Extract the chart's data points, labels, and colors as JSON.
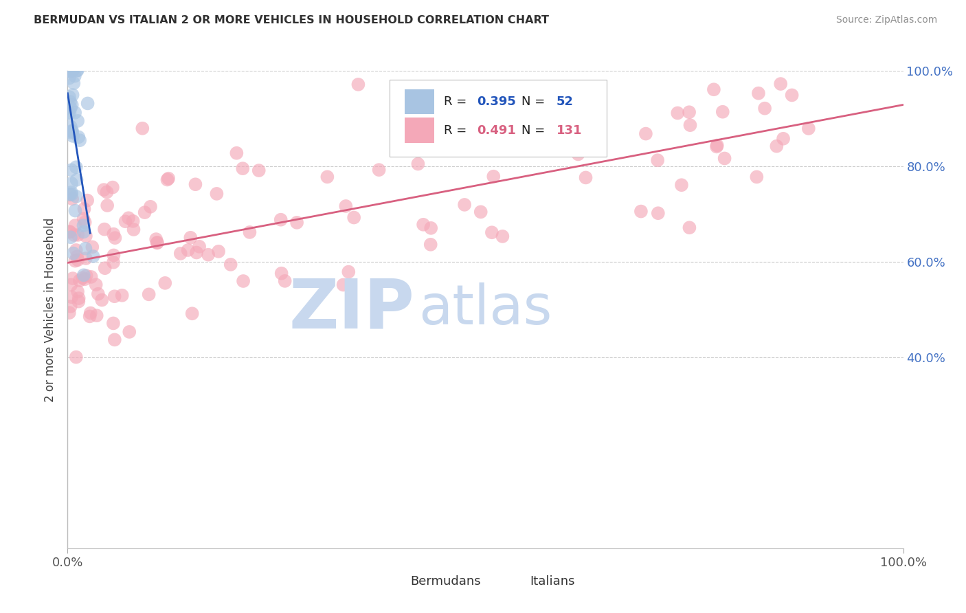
{
  "title": "BERMUDAN VS ITALIAN 2 OR MORE VEHICLES IN HOUSEHOLD CORRELATION CHART",
  "source": "Source: ZipAtlas.com",
  "ylabel": "2 or more Vehicles in Household",
  "xlim": [
    0,
    1.0
  ],
  "ylim": [
    0,
    1.0
  ],
  "yticks": [
    0.4,
    0.6,
    0.8,
    1.0
  ],
  "ytick_labels": [
    "40.0%",
    "60.0%",
    "80.0%",
    "100.0%"
  ],
  "xtick_left": "0.0%",
  "xtick_right": "100.0%",
  "bermudan_color": "#a8c4e2",
  "italian_color": "#f4a8b8",
  "bermudan_line_color": "#2255bb",
  "italian_line_color": "#d86080",
  "right_axis_color": "#4472c4",
  "title_color": "#303030",
  "source_color": "#909090",
  "watermark_zip": "ZIP",
  "watermark_atlas": "atlas",
  "watermark_color": "#c8d8ee",
  "legend_label_1": "Bermudans",
  "legend_label_2": "Italians",
  "bermudan_R": 0.395,
  "bermudan_N": 52,
  "italian_R": 0.491,
  "italian_N": 131,
  "grid_color": "#cccccc",
  "dot_size": 200,
  "dot_alpha": 0.65,
  "bermudan_seed": 7,
  "italian_seed": 42
}
